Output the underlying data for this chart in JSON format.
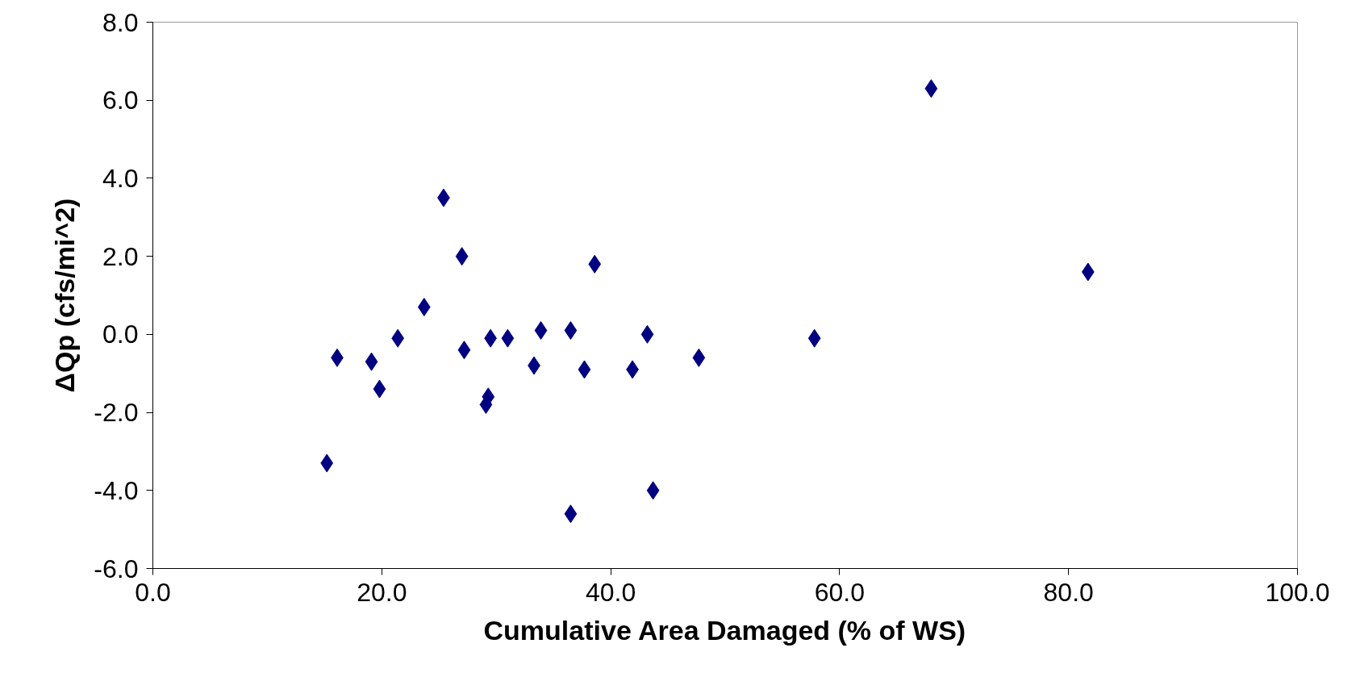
{
  "chart_data": {
    "type": "scatter",
    "xlabel": "Cumulative Area Damaged (% of WS)",
    "ylabel": "ΔQp (cfs/mi^2)",
    "x": [
      15.2,
      16.1,
      19.1,
      19.8,
      21.4,
      23.7,
      25.4,
      27.0,
      27.2,
      29.1,
      29.3,
      29.5,
      31.0,
      33.3,
      33.9,
      36.5,
      36.5,
      37.7,
      38.6,
      41.9,
      43.2,
      43.7,
      47.7,
      57.8,
      68.0,
      81.7
    ],
    "series": [
      {
        "color": "#000080",
        "values": [
          -3.3,
          -0.6,
          -0.7,
          -1.4,
          -0.1,
          0.7,
          3.5,
          2.0,
          -0.4,
          -1.8,
          -1.6,
          -0.1,
          -0.1,
          -0.8,
          0.1,
          0.1,
          -4.6,
          -0.9,
          1.8,
          -0.9,
          0.0,
          -4.0,
          -0.6,
          -0.1,
          6.3,
          1.6
        ]
      }
    ],
    "xlim": [
      0,
      100
    ],
    "ylim": [
      -6,
      8
    ],
    "xticks": [
      {
        "value": 0,
        "label": "0.0"
      },
      {
        "value": 20,
        "label": "20.0"
      },
      {
        "value": 40,
        "label": "40.0"
      },
      {
        "value": 60,
        "label": "60.0"
      },
      {
        "value": 80,
        "label": "80.0"
      },
      {
        "value": 100,
        "label": "100.0"
      }
    ],
    "yticks": [
      {
        "value": -6,
        "label": "-6.0"
      },
      {
        "value": -4,
        "label": "-4.0"
      },
      {
        "value": -2,
        "label": "-2.0"
      },
      {
        "value": 0,
        "label": "0.0"
      },
      {
        "value": 2,
        "label": "2.0"
      },
      {
        "value": 4,
        "label": "4.0"
      },
      {
        "value": 6,
        "label": "6.0"
      },
      {
        "value": 8,
        "label": "8.0"
      }
    ],
    "marker": "diamond",
    "grid": false
  }
}
